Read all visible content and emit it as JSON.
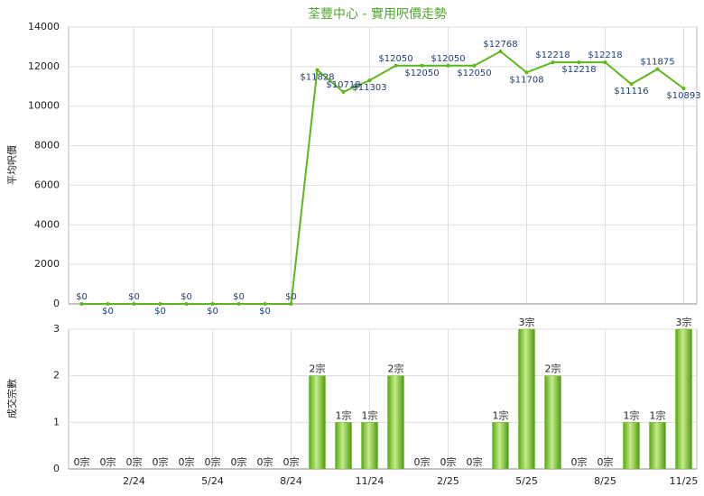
{
  "chart_data": [
    {
      "type": "line",
      "title": "荃豐中心 - 實用呎價走勢",
      "ylabel": "平均呎價",
      "series": [
        {
          "color": "#5cb81a",
          "values": [
            0,
            0,
            0,
            0,
            0,
            0,
            0,
            0,
            0,
            11828,
            10718,
            11303,
            12050,
            12050,
            12050,
            12050,
            12768,
            11708,
            12218,
            12218,
            12218,
            11116,
            11875,
            10893
          ],
          "value_labels": [
            "$0",
            "$0",
            "$0",
            "$0",
            "$0",
            "$0",
            "$0",
            "$0",
            "$0",
            "$11828",
            "$10718",
            "$11303",
            "$12050",
            "$12050",
            "$12050",
            "$12050",
            "$12768",
            "$11708",
            "$12218",
            "$12218",
            "$12218",
            "$11116",
            "$11875",
            "$10893"
          ]
        }
      ],
      "ylim": [
        0,
        14000
      ],
      "yticks": [
        0,
        2000,
        4000,
        6000,
        8000,
        10000,
        12000,
        14000
      ],
      "grid": true
    },
    {
      "type": "bar",
      "ylabel": "成交宗數",
      "categories": [
        null,
        null,
        "2/24",
        null,
        null,
        "5/24",
        null,
        null,
        "8/24",
        null,
        null,
        "11/24",
        null,
        null,
        "2/25",
        null,
        null,
        "5/25",
        null,
        null,
        "8/25",
        null,
        null,
        "11/25"
      ],
      "values": [
        0,
        0,
        0,
        0,
        0,
        0,
        0,
        0,
        0,
        2,
        1,
        1,
        2,
        0,
        0,
        0,
        1,
        3,
        2,
        0,
        0,
        1,
        1,
        3
      ],
      "value_labels": [
        "0宗",
        "0宗",
        "0宗",
        "0宗",
        "0宗",
        "0宗",
        "0宗",
        "0宗",
        "0宗",
        "2宗",
        "1宗",
        "1宗",
        "2宗",
        "0宗",
        "0宗",
        "0宗",
        "1宗",
        "3宗",
        "2宗",
        "0宗",
        "0宗",
        "1宗",
        "1宗",
        "3宗"
      ],
      "color": "#6cbf1f",
      "ylim": [
        0,
        3
      ],
      "yticks": [
        0,
        1,
        2,
        3
      ],
      "grid": true
    }
  ]
}
